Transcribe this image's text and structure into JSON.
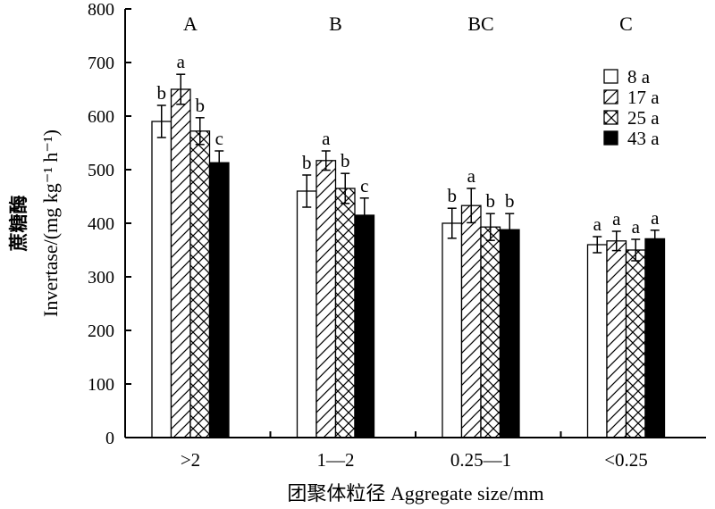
{
  "chart_data": {
    "type": "bar",
    "xlabel": "团聚体粒径 Aggregate size/mm",
    "ylabel_cn": "蔗糖酶",
    "ylabel": "Invertase/(mg kg⁻¹ h⁻¹)",
    "ylim": [
      0,
      800
    ],
    "yticks": [
      0,
      100,
      200,
      300,
      400,
      500,
      600,
      700,
      800
    ],
    "categories": [
      ">2",
      "1—2",
      "0.25—1",
      "<0.25"
    ],
    "group_letters": [
      "A",
      "B",
      "BC",
      "C"
    ],
    "legend_position": "top-right",
    "series": [
      {
        "name": "8 a",
        "pattern": "open",
        "values": [
          590,
          460,
          400,
          360
        ],
        "errors": [
          30,
          30,
          28,
          15
        ],
        "letters": [
          "b",
          "b",
          "b",
          "a"
        ]
      },
      {
        "name": "17 a",
        "pattern": "hatch",
        "values": [
          650,
          517,
          433,
          367
        ],
        "errors": [
          28,
          18,
          32,
          18
        ],
        "letters": [
          "a",
          "a",
          "a",
          "a"
        ]
      },
      {
        "name": "25 a",
        "pattern": "crosshatch",
        "values": [
          572,
          465,
          393,
          350
        ],
        "errors": [
          25,
          28,
          25,
          20
        ],
        "letters": [
          "b",
          "b",
          "b",
          "a"
        ]
      },
      {
        "name": "43 a",
        "pattern": "solid",
        "values": [
          513,
          415,
          388,
          371
        ],
        "errors": [
          22,
          32,
          30,
          16
        ],
        "letters": [
          "c",
          "c",
          "b",
          "a"
        ]
      }
    ]
  },
  "colors": {
    "bar_stroke": "#000000",
    "solid_fill": "#000000",
    "background": "#ffffff"
  }
}
